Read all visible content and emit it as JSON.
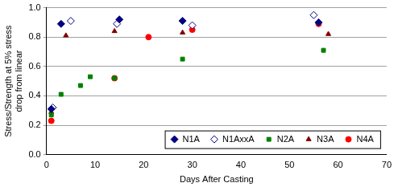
{
  "chart_data": {
    "type": "scatter",
    "x_label": "Days After Casting",
    "y_label": [
      "Stress/Strength at 5% stress",
      "drop from linear"
    ],
    "xlim": [
      0,
      70
    ],
    "xticks": [
      0,
      10,
      20,
      30,
      40,
      50,
      60,
      70
    ],
    "ylim": [
      0,
      1
    ],
    "yticks": [
      {
        "value": 0,
        "label": "0.0"
      },
      0.2,
      0.4,
      0.6,
      0.8,
      {
        "value": 1,
        "label": "1.0"
      }
    ],
    "grid": "y",
    "legend": "lower right",
    "series": [
      {
        "name": "N1A",
        "color": "#000080",
        "marker": "diamond",
        "x": [
          1,
          3,
          15,
          28,
          56
        ],
        "values": [
          0.31,
          0.89,
          0.92,
          0.91,
          0.9
        ]
      },
      {
        "name": "N1AxxA",
        "color": "#000080",
        "marker": "diamond_open",
        "x": [
          1.3,
          5,
          14.5,
          30,
          55
        ],
        "values": [
          0.32,
          0.91,
          0.89,
          0.88,
          0.95
        ]
      },
      {
        "name": "N2A",
        "color": "#008000",
        "marker": "square",
        "x": [
          1,
          3,
          7,
          9,
          14,
          28,
          57
        ],
        "values": [
          0.27,
          0.41,
          0.47,
          0.53,
          0.52,
          0.65,
          0.71
        ]
      },
      {
        "name": "N3A",
        "color": "#800000",
        "marker": "triangle",
        "x": [
          1,
          4,
          14,
          28,
          58
        ],
        "values": [
          0.29,
          0.81,
          0.84,
          0.83,
          0.82
        ]
      },
      {
        "name": "N4A",
        "color": "#ff0000",
        "marker": "circle",
        "x": [
          1,
          14,
          21,
          30,
          56
        ],
        "values": [
          0.23,
          0.52,
          0.8,
          0.85,
          0.89
        ]
      }
    ]
  }
}
